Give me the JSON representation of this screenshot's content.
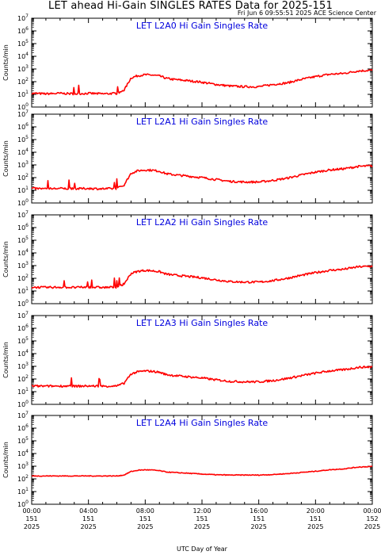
{
  "title": "LET ahead Hi-Gain SINGLES RATES Data for 2025-151",
  "subtitle": "Fri Jun  6 09:55:51 2025 ACE Science Center",
  "colors": {
    "series": "#ff0000",
    "panel_title": "#0000dd",
    "axes": "#000000"
  },
  "chart_data": {
    "type": "line",
    "xlabel": "UTC Day of Year",
    "ylabel": "Counts/min",
    "x_unit": "hours of day 151",
    "xlim": [
      0,
      24
    ],
    "ylim_log10": [
      0,
      7
    ],
    "yscale": "log",
    "grid": false,
    "x_ticks": [
      {
        "x": 0,
        "lines": [
          "00:00",
          "151",
          "2025"
        ]
      },
      {
        "x": 4,
        "lines": [
          "04:00",
          "151",
          "2025"
        ]
      },
      {
        "x": 8,
        "lines": [
          "08:00",
          "151",
          "2025"
        ]
      },
      {
        "x": 12,
        "lines": [
          "12:00",
          "151",
          "2025"
        ]
      },
      {
        "x": 16,
        "lines": [
          "16:00",
          "151",
          "2025"
        ]
      },
      {
        "x": 20,
        "lines": [
          "20:00",
          "151",
          "2025"
        ]
      },
      {
        "x": 24,
        "lines": [
          "00:00",
          "152",
          "2025"
        ]
      }
    ],
    "y_ticks": [
      {
        "exp": 0,
        "base": "10",
        "sup": "0"
      },
      {
        "exp": 1,
        "base": "10",
        "sup": "1"
      },
      {
        "exp": 2,
        "base": "10",
        "sup": "2"
      },
      {
        "exp": 3,
        "base": "10",
        "sup": "3"
      },
      {
        "exp": 4,
        "base": "10",
        "sup": "4"
      },
      {
        "exp": 5,
        "base": "10",
        "sup": "5"
      },
      {
        "exp": 6,
        "base": "10",
        "sup": "6"
      },
      {
        "exp": 7,
        "base": "10",
        "sup": "7"
      }
    ],
    "panels": [
      {
        "name": "LET L2A0 Hi Gain Singles Rate",
        "x": [
          0,
          1,
          2,
          3,
          4,
          5,
          6,
          6.5,
          7,
          7.5,
          8,
          8.5,
          9,
          9.5,
          10,
          11,
          12,
          13,
          14,
          15,
          16,
          17,
          18,
          19,
          20,
          21,
          22,
          23,
          24
        ],
        "y": [
          12,
          11,
          12,
          11,
          12,
          11,
          12,
          20,
          200,
          300,
          350,
          330,
          280,
          180,
          150,
          120,
          90,
          60,
          45,
          40,
          40,
          60,
          80,
          150,
          250,
          380,
          450,
          700,
          800
        ]
      },
      {
        "name": "LET L2A1 Hi Gain Singles Rate",
        "x": [
          0,
          1,
          2,
          3,
          4,
          5,
          6,
          6.5,
          7,
          7.5,
          8,
          8.5,
          9,
          9.5,
          10,
          11,
          12,
          13,
          14,
          15,
          16,
          17,
          18,
          19,
          20,
          21,
          22,
          23,
          24
        ],
        "y": [
          14,
          13,
          14,
          13,
          14,
          13,
          14,
          25,
          220,
          350,
          400,
          380,
          320,
          200,
          170,
          130,
          100,
          70,
          50,
          45,
          45,
          60,
          90,
          160,
          270,
          400,
          500,
          750,
          850
        ]
      },
      {
        "name": "LET L2A2 Hi Gain Singles Rate",
        "x": [
          0,
          1,
          2,
          3,
          4,
          5,
          6,
          6.5,
          7,
          7.5,
          8,
          8.5,
          9,
          9.5,
          10,
          11,
          12,
          13,
          14,
          15,
          16,
          17,
          18,
          19,
          20,
          21,
          22,
          23,
          24
        ],
        "y": [
          20,
          19,
          20,
          19,
          20,
          19,
          20,
          35,
          240,
          360,
          420,
          390,
          330,
          210,
          180,
          140,
          110,
          75,
          55,
          50,
          50,
          65,
          100,
          170,
          280,
          420,
          520,
          800,
          900
        ]
      },
      {
        "name": "LET L2A3 Hi Gain Singles Rate",
        "x": [
          0,
          1,
          2,
          3,
          4,
          5,
          6,
          6.5,
          7,
          7.5,
          8,
          8.5,
          9,
          9.5,
          10,
          11,
          12,
          13,
          14,
          15,
          16,
          17,
          18,
          19,
          20,
          21,
          22,
          23,
          24
        ],
        "y": [
          28,
          27,
          28,
          27,
          28,
          27,
          28,
          45,
          250,
          370,
          430,
          400,
          340,
          220,
          190,
          150,
          120,
          85,
          65,
          60,
          60,
          75,
          110,
          180,
          290,
          430,
          540,
          820,
          920
        ]
      },
      {
        "name": "LET L2A4 Hi Gain Singles Rate",
        "x": [
          0,
          1,
          2,
          3,
          4,
          5,
          6,
          6.5,
          7,
          7.5,
          8,
          8.5,
          9,
          9.5,
          10,
          11,
          12,
          13,
          14,
          15,
          16,
          17,
          18,
          19,
          20,
          21,
          22,
          23,
          24
        ],
        "y": [
          170,
          170,
          170,
          170,
          170,
          170,
          170,
          200,
          380,
          480,
          520,
          500,
          440,
          350,
          320,
          280,
          240,
          210,
          200,
          200,
          200,
          220,
          260,
          320,
          400,
          520,
          620,
          850,
          950
        ]
      }
    ]
  }
}
